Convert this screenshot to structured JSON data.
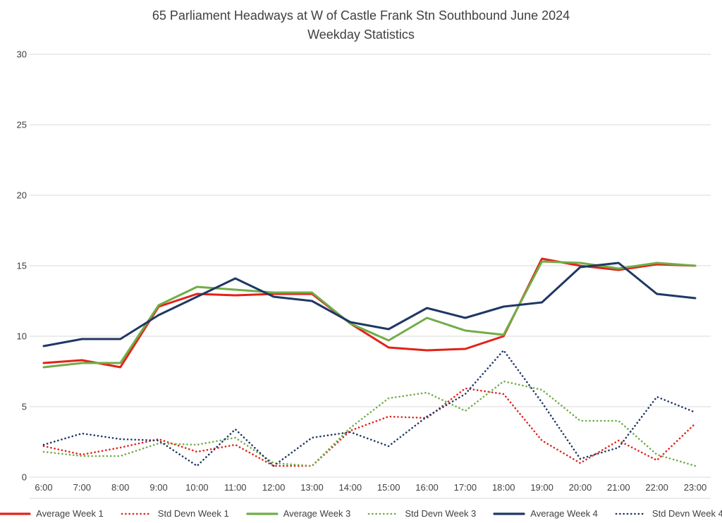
{
  "title": {
    "line1": "65 Parliament Headways at W of Castle Frank Stn Southbound June 2024",
    "line2": "Weekday Statistics"
  },
  "colors": {
    "red": "#e32119",
    "green": "#70ad47",
    "navy": "#1f3864",
    "gridline": "#d9d9d9",
    "axis_text": "#404040",
    "title_text": "#404040"
  },
  "chart_data": {
    "type": "line",
    "title": "65 Parliament Headways at W of Castle Frank Stn Southbound June 2024 Weekday Statistics",
    "xlabel": "",
    "ylabel": "",
    "x": [
      "6:00",
      "7:00",
      "8:00",
      "9:00",
      "10:00",
      "11:00",
      "12:00",
      "13:00",
      "14:00",
      "15:00",
      "16:00",
      "17:00",
      "18:00",
      "19:00",
      "20:00",
      "21:00",
      "22:00",
      "23:00"
    ],
    "ylim": [
      0,
      30
    ],
    "yticks": [
      0,
      5,
      10,
      15,
      20,
      25,
      30
    ],
    "grid": "horizontal",
    "legend_position": "bottom",
    "series": [
      {
        "name": "Average Week 1",
        "color": "#e32119",
        "style": "solid",
        "values": [
          8.1,
          8.3,
          7.8,
          12.1,
          13.0,
          12.9,
          13.0,
          13.0,
          10.9,
          9.2,
          9.0,
          9.1,
          10.0,
          15.5,
          15.0,
          14.7,
          15.1,
          15.0
        ]
      },
      {
        "name": "Std Devn Week 1",
        "color": "#e32119",
        "style": "dotted",
        "values": [
          2.2,
          1.6,
          2.1,
          2.7,
          1.8,
          2.3,
          0.8,
          0.8,
          3.3,
          4.3,
          4.2,
          6.3,
          5.9,
          2.6,
          1.0,
          2.6,
          1.2,
          3.8
        ]
      },
      {
        "name": "Average Week 3",
        "color": "#70ad47",
        "style": "solid",
        "values": [
          7.8,
          8.1,
          8.1,
          12.2,
          13.5,
          13.3,
          13.1,
          13.1,
          10.9,
          9.7,
          11.3,
          10.4,
          10.1,
          15.3,
          15.2,
          14.8,
          15.2,
          15.0
        ]
      },
      {
        "name": "Std Devn Week 3",
        "color": "#70ad47",
        "style": "dotted",
        "values": [
          1.8,
          1.5,
          1.5,
          2.4,
          2.3,
          2.8,
          1.0,
          0.8,
          3.5,
          5.6,
          6.0,
          4.7,
          6.8,
          6.2,
          4.0,
          4.0,
          1.6,
          0.8
        ]
      },
      {
        "name": "Average Week 4",
        "color": "#1f3864",
        "style": "solid",
        "values": [
          9.3,
          9.8,
          9.8,
          11.5,
          12.8,
          14.1,
          12.8,
          12.5,
          11.0,
          10.5,
          12.0,
          11.3,
          12.1,
          12.4,
          14.9,
          15.2,
          13.0,
          12.7
        ]
      },
      {
        "name": "Std Devn Week 4",
        "color": "#1f3864",
        "style": "dotted",
        "values": [
          2.3,
          3.1,
          2.7,
          2.6,
          0.8,
          3.4,
          0.8,
          2.8,
          3.2,
          2.2,
          4.3,
          5.9,
          9.0,
          5.3,
          1.3,
          2.1,
          5.7,
          4.6
        ]
      }
    ]
  }
}
